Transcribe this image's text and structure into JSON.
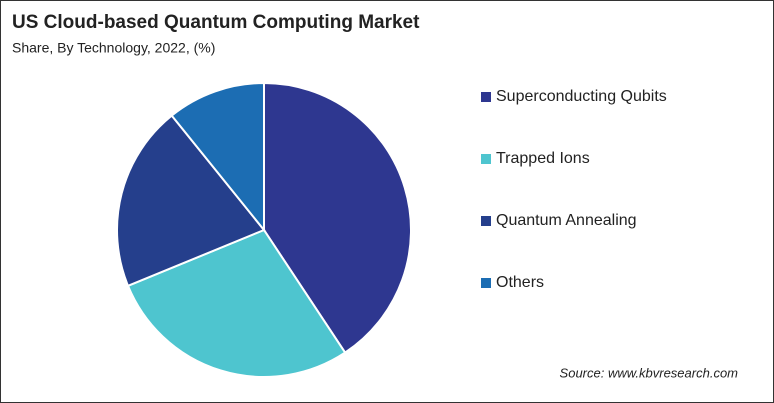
{
  "chart_data": {
    "type": "pie",
    "title": "US Cloud-based Quantum Computing Market",
    "subtitle": "Share, By Technology, 2022, (%)",
    "source": "Source: www.kbvresearch.com",
    "categories": [
      "Superconducting Qubits",
      "Trapped Ions",
      "Quantum Annealing",
      "Others"
    ],
    "values": [
      40.7,
      28.1,
      20.4,
      10.8
    ],
    "colors": [
      "#2e3790",
      "#4ec5cf",
      "#253f8c",
      "#1c6db3"
    ]
  }
}
